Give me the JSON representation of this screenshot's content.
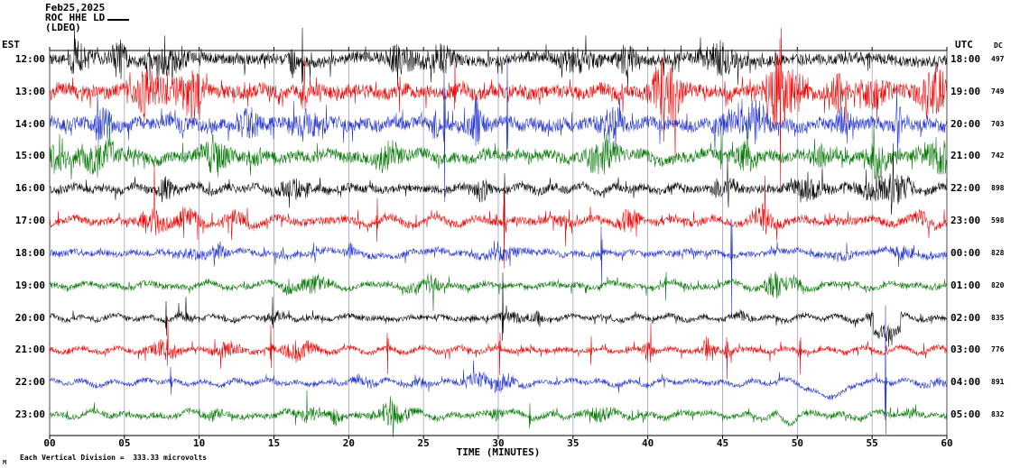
{
  "header": {
    "date": "Feb25,2025",
    "station": "ROC HHE LD",
    "network": "(LDEO)"
  },
  "corner_labels": {
    "left": "EST",
    "right": "UTC",
    "dc": "DC"
  },
  "footer": {
    "x_axis_title": "TIME (MINUTES)",
    "scale_note": "Each Vertical Division =  333.33 microvolts",
    "watermark": "M"
  },
  "chart_data": {
    "type": "line",
    "title": "ROC HHE LD (LDEO) helicorder Feb25,2025",
    "x_label": "TIME (MINUTES)",
    "x_unit": "minutes",
    "x_range": [
      0,
      60
    ],
    "x_ticks": [
      "00",
      "05",
      "10",
      "15",
      "20",
      "25",
      "30",
      "35",
      "40",
      "45",
      "50",
      "55",
      "60"
    ],
    "grid": "vertical line every 5 minutes",
    "grid_color": "#9090bc",
    "left_axis": "EST local time per trace row",
    "right_axis": "UTC time per trace row",
    "dc_column": "DC offset in counts per trace row",
    "scale_note": "Each Vertical Division = 333.33 microvolts",
    "trace_note": "continuous seismic waveform, one hour per row, noise amplitudes approximated procedurally",
    "colors_cycle": [
      "#000000",
      "#ee0000",
      "#2233cc",
      "#007700"
    ],
    "rows": [
      {
        "est": "12:00",
        "utc": "18:00",
        "dc": "497",
        "color": "#000000",
        "seed": 101,
        "noise": 6.0,
        "spike_prob": 0.055,
        "spike_amp": 14,
        "bursts": 11,
        "burst_gain": 2.4,
        "wander": 2.0,
        "tall": [
          [
            16.9,
            40
          ]
        ]
      },
      {
        "est": "13:00",
        "utc": "19:00",
        "dc": "749",
        "color": "#ee0000",
        "seed": 102,
        "noise": 7.2,
        "spike_prob": 0.065,
        "spike_amp": 16,
        "bursts": 12,
        "burst_gain": 2.6,
        "wander": 2.2,
        "tall": [
          [
            23.4,
            32
          ],
          [
            27.1,
            38
          ]
        ]
      },
      {
        "est": "14:00",
        "utc": "20:00",
        "dc": "703",
        "color": "#2233cc",
        "seed": 103,
        "noise": 6.8,
        "spike_prob": 0.06,
        "spike_amp": 15,
        "bursts": 12,
        "burst_gain": 2.3,
        "wander": 2.0,
        "tall": [
          [
            26.4,
            95
          ],
          [
            30.6,
            85
          ]
        ]
      },
      {
        "est": "15:00",
        "utc": "21:00",
        "dc": "742",
        "color": "#007700",
        "seed": 104,
        "noise": 6.0,
        "spike_prob": 0.05,
        "spike_amp": 12,
        "bursts": 10,
        "burst_gain": 2.1,
        "wander": 2.0,
        "tall": [
          [
            44.9,
            30
          ]
        ]
      },
      {
        "est": "16:00",
        "utc": "22:00",
        "dc": "898",
        "color": "#000000",
        "seed": 105,
        "noise": 4.2,
        "spike_prob": 0.04,
        "spike_amp": 10,
        "bursts": 8,
        "burst_gain": 2.0,
        "wander": 1.8,
        "tall": [
          [
            30.4,
            28
          ]
        ]
      },
      {
        "est": "17:00",
        "utc": "23:00",
        "dc": "598",
        "color": "#ee0000",
        "seed": 106,
        "noise": 4.0,
        "spike_prob": 0.04,
        "spike_amp": 12,
        "bursts": 9,
        "burst_gain": 2.4,
        "wander": 1.8,
        "tall": [
          [
            21.9,
            34
          ],
          [
            30.4,
            55
          ]
        ]
      },
      {
        "est": "18:00",
        "utc": "00:00",
        "dc": "828",
        "color": "#2233cc",
        "seed": 107,
        "noise": 3.2,
        "spike_prob": 0.032,
        "spike_amp": 9,
        "bursts": 7,
        "burst_gain": 2.0,
        "wander": 1.6,
        "tall": [
          [
            36.9,
            45
          ],
          [
            45.6,
            70
          ]
        ]
      },
      {
        "est": "19:00",
        "utc": "01:00",
        "dc": "820",
        "color": "#007700",
        "seed": 108,
        "noise": 3.0,
        "spike_prob": 0.03,
        "spike_amp": 8,
        "bursts": 7,
        "burst_gain": 2.0,
        "wander": 1.6,
        "tall": [
          [
            41.2,
            22
          ]
        ]
      },
      {
        "est": "20:00",
        "utc": "02:00",
        "dc": "835",
        "color": "#000000",
        "seed": 109,
        "noise": 2.7,
        "spike_prob": 0.03,
        "spike_amp": 8,
        "bursts": 6,
        "burst_gain": 2.0,
        "wander": 1.5,
        "tall": [
          [
            7.8,
            26
          ],
          [
            14.9,
            22
          ],
          [
            30.3,
            45
          ]
        ],
        "step": [
          55.1,
          56.9,
          16
        ]
      },
      {
        "est": "21:00",
        "utc": "03:00",
        "dc": "776",
        "color": "#ee0000",
        "seed": 110,
        "noise": 2.7,
        "spike_prob": 0.03,
        "spike_amp": 9,
        "bursts": 7,
        "burst_gain": 2.6,
        "wander": 1.5,
        "tall": [
          [
            7.9,
            30
          ],
          [
            14.8,
            35
          ],
          [
            22.6,
            30
          ],
          [
            30.1,
            28
          ],
          [
            36.2,
            22
          ],
          [
            40.2,
            25
          ],
          [
            45.3,
            30
          ],
          [
            50.2,
            28
          ]
        ]
      },
      {
        "est": "22:00",
        "utc": "04:00",
        "dc": "891",
        "color": "#2233cc",
        "seed": 111,
        "noise": 2.5,
        "spike_prob": 0.022,
        "spike_amp": 7,
        "bursts": 6,
        "burst_gain": 2.0,
        "wander": 1.6,
        "tall": [
          [
            8.1,
            20
          ],
          [
            55.9,
            95
          ]
        ],
        "dip": [
          50.0,
          54.0,
          14
        ]
      },
      {
        "est": "23:00",
        "utc": "05:00",
        "dc": "832",
        "color": "#007700",
        "seed": 112,
        "noise": 3.0,
        "spike_prob": 0.03,
        "spike_amp": 8,
        "bursts": 8,
        "burst_gain": 2.2,
        "wander": 1.7,
        "tall": [
          [
            17.2,
            25
          ],
          [
            32.1,
            20
          ]
        ],
        "dip": [
          48.6,
          50.2,
          12
        ]
      }
    ]
  }
}
